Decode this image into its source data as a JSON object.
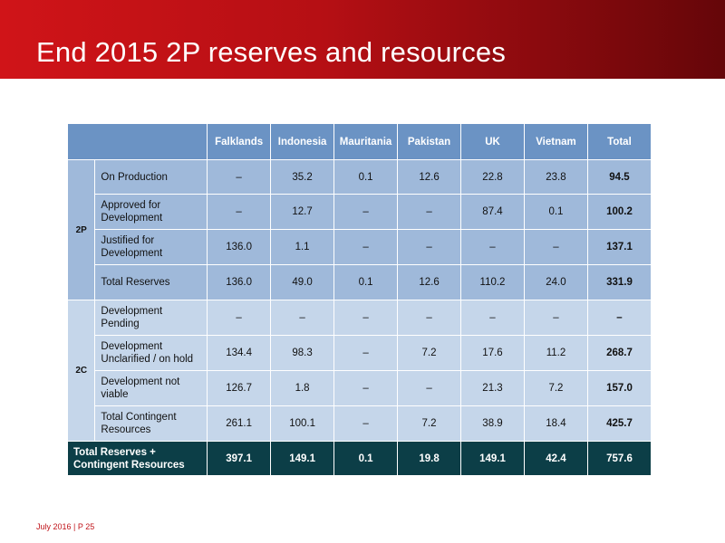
{
  "title": "End 2015 2P reserves and resources",
  "table": {
    "columns": [
      "Falklands",
      "Indonesia",
      "Mauritania",
      "Pakistan",
      "UK",
      "Vietnam",
      "Total"
    ],
    "groups": [
      {
        "name": "2P",
        "rows": [
          {
            "label": "On Production",
            "values": [
              "–",
              "35.2",
              "0.1",
              "12.6",
              "22.8",
              "23.8",
              "94.5"
            ]
          },
          {
            "label": "Approved for Development",
            "values": [
              "–",
              "12.7",
              "–",
              "–",
              "87.4",
              "0.1",
              "100.2"
            ]
          },
          {
            "label": "Justified for Development",
            "values": [
              "136.0",
              "1.1",
              "–",
              "–",
              "–",
              "–",
              "137.1"
            ]
          },
          {
            "label": "Total Reserves",
            "values": [
              "136.0",
              "49.0",
              "0.1",
              "12.6",
              "110.2",
              "24.0",
              "331.9"
            ]
          }
        ]
      },
      {
        "name": "2C",
        "rows": [
          {
            "label": "Development Pending",
            "values": [
              "–",
              "–",
              "–",
              "–",
              "–",
              "–",
              "–"
            ]
          },
          {
            "label": "Development Unclarified / on hold",
            "values": [
              "134.4",
              "98.3",
              "–",
              "7.2",
              "17.6",
              "11.2",
              "268.7"
            ]
          },
          {
            "label": "Development not viable",
            "values": [
              "126.7",
              "1.8",
              "–",
              "–",
              "21.3",
              "7.2",
              "157.0"
            ]
          },
          {
            "label": "Total Contingent Resources",
            "values": [
              "261.1",
              "100.1",
              "–",
              "7.2",
              "38.9",
              "18.4",
              "425.7"
            ]
          }
        ]
      }
    ],
    "grand_total": {
      "label": "Total Reserves + Contingent Resources",
      "values": [
        "397.1",
        "149.1",
        "0.1",
        "19.8",
        "149.1",
        "42.4",
        "757.6"
      ]
    }
  },
  "footer": "July 2016 | P 25",
  "colors": {
    "header_red": "#c8141a",
    "table_header": "#6b93c4",
    "group_2p": "#9fb9da",
    "group_2c": "#c5d6ea",
    "grand_total": "#0c3e47"
  }
}
